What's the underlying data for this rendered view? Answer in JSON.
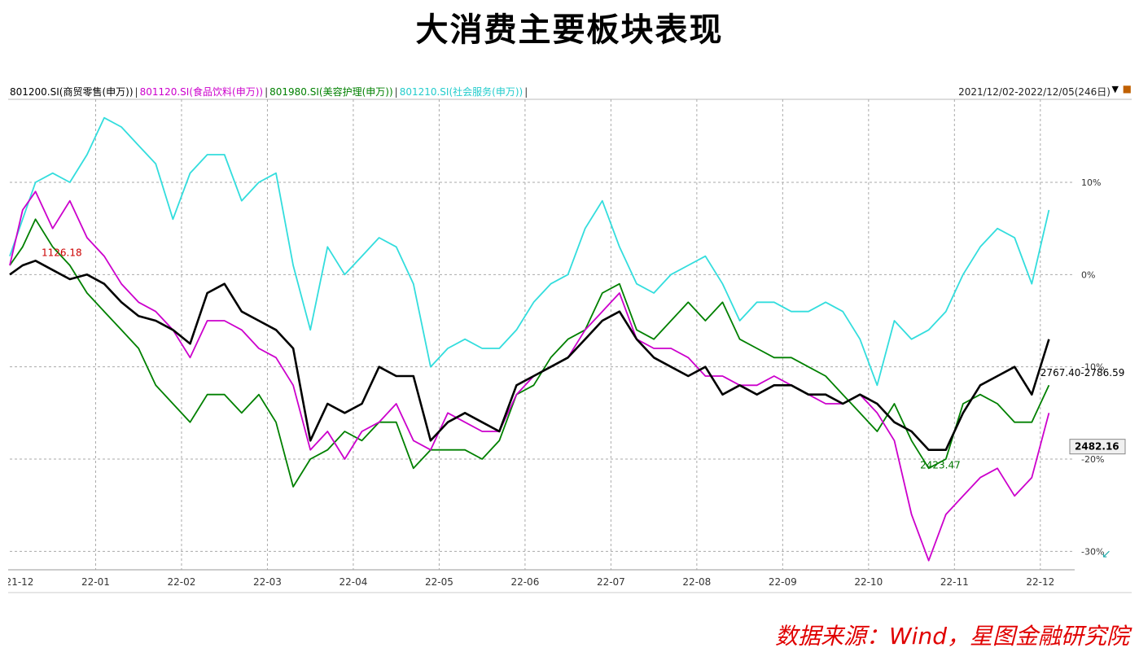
{
  "title": "大消费主要板块表现",
  "source": "数据来源：Wind，星图金融研究院",
  "date_range": "2021/12/02-2022/12/05(246日)",
  "icons": {
    "dropdown": "triangle-down-icon",
    "corner": "export-icon",
    "collapse": "arrow-icon"
  },
  "chart_data": {
    "type": "line",
    "x": [
      "21-12",
      "22-01",
      "22-02",
      "22-03",
      "22-04",
      "22-05",
      "22-06",
      "22-07",
      "22-08",
      "22-09",
      "22-10",
      "22-11",
      "22-12"
    ],
    "ylim": [
      -32,
      19
    ],
    "yticks": [
      10,
      0,
      -10,
      -20,
      -30
    ],
    "ytick_labels": [
      "10%",
      "0%",
      "-10%",
      "-20%",
      "-30%"
    ],
    "grid": true,
    "legend_position": "top-left",
    "annotations": [
      {
        "text": "1126.18",
        "x": 0.37,
        "y": 2,
        "color": "#cc0000"
      },
      {
        "text": "2767.40-2786.59",
        "x": 12.0,
        "y": -11,
        "color": "#000000"
      },
      {
        "text": "2482.16",
        "x": 12.4,
        "y": -19,
        "color": "#000000"
      },
      {
        "text": "2423.47",
        "x": 10.6,
        "y": -21,
        "color": "#007700"
      }
    ],
    "series": [
      {
        "name": "801200.SI(商贸零售(申万))",
        "color": "#000000",
        "x": [
          0,
          0.15,
          0.3,
          0.5,
          0.7,
          0.9,
          1.1,
          1.3,
          1.5,
          1.7,
          1.9,
          2.1,
          2.3,
          2.5,
          2.7,
          2.9,
          3.1,
          3.3,
          3.5,
          3.7,
          3.9,
          4.1,
          4.3,
          4.5,
          4.7,
          4.9,
          5.1,
          5.3,
          5.5,
          5.7,
          5.9,
          6.1,
          6.3,
          6.5,
          6.7,
          6.9,
          7.1,
          7.3,
          7.5,
          7.7,
          7.9,
          8.1,
          8.3,
          8.5,
          8.7,
          8.9,
          9.1,
          9.3,
          9.5,
          9.7,
          9.9,
          10.1,
          10.3,
          10.5,
          10.7,
          10.9,
          11.1,
          11.3,
          11.5,
          11.7,
          11.9,
          12.1
        ],
        "values": [
          0,
          1,
          1.5,
          0.5,
          -0.5,
          0,
          -1,
          -3,
          -4.5,
          -5,
          -6,
          -7.5,
          -2,
          -1,
          -4,
          -5,
          -6,
          -8,
          -18,
          -14,
          -15,
          -14,
          -10,
          -11,
          -11,
          -18,
          -16,
          -15,
          -16,
          -17,
          -12,
          -11,
          -10,
          -9,
          -7,
          -5,
          -4,
          -7,
          -9,
          -10,
          -11,
          -10,
          -13,
          -12,
          -13,
          -12,
          -12,
          -13,
          -13,
          -14,
          -13,
          -14,
          -16,
          -17,
          -19,
          -19,
          -15,
          -12,
          -11,
          -10,
          -13,
          -7
        ]
      },
      {
        "name": "801120.SI(食品饮料(申万))",
        "color": "#cc00cc",
        "x": [
          0,
          0.15,
          0.3,
          0.5,
          0.7,
          0.9,
          1.1,
          1.3,
          1.5,
          1.7,
          1.9,
          2.1,
          2.3,
          2.5,
          2.7,
          2.9,
          3.1,
          3.3,
          3.5,
          3.7,
          3.9,
          4.1,
          4.3,
          4.5,
          4.7,
          4.9,
          5.1,
          5.3,
          5.5,
          5.7,
          5.9,
          6.1,
          6.3,
          6.5,
          6.7,
          6.9,
          7.1,
          7.3,
          7.5,
          7.7,
          7.9,
          8.1,
          8.3,
          8.5,
          8.7,
          8.9,
          9.1,
          9.3,
          9.5,
          9.7,
          9.9,
          10.1,
          10.3,
          10.5,
          10.7,
          10.9,
          11.1,
          11.3,
          11.5,
          11.7,
          11.9,
          12.1
        ],
        "values": [
          1,
          7,
          9,
          5,
          8,
          4,
          2,
          -1,
          -3,
          -4,
          -6,
          -9,
          -5,
          -5,
          -6,
          -8,
          -9,
          -12,
          -19,
          -17,
          -20,
          -17,
          -16,
          -14,
          -18,
          -19,
          -15,
          -16,
          -17,
          -17,
          -13,
          -11,
          -10,
          -9,
          -6,
          -4,
          -2,
          -7,
          -8,
          -8,
          -9,
          -11,
          -11,
          -12,
          -12,
          -11,
          -12,
          -13,
          -14,
          -14,
          -13,
          -15,
          -18,
          -26,
          -31,
          -26,
          -24,
          -22,
          -21,
          -24,
          -22,
          -15
        ]
      },
      {
        "name": "801980.SI(美容护理(申万))",
        "color": "#008000",
        "x": [
          0,
          0.15,
          0.3,
          0.5,
          0.7,
          0.9,
          1.1,
          1.3,
          1.5,
          1.7,
          1.9,
          2.1,
          2.3,
          2.5,
          2.7,
          2.9,
          3.1,
          3.3,
          3.5,
          3.7,
          3.9,
          4.1,
          4.3,
          4.5,
          4.7,
          4.9,
          5.1,
          5.3,
          5.5,
          5.7,
          5.9,
          6.1,
          6.3,
          6.5,
          6.7,
          6.9,
          7.1,
          7.3,
          7.5,
          7.7,
          7.9,
          8.1,
          8.3,
          8.5,
          8.7,
          8.9,
          9.1,
          9.3,
          9.5,
          9.7,
          9.9,
          10.1,
          10.3,
          10.5,
          10.7,
          10.9,
          11.1,
          11.3,
          11.5,
          11.7,
          11.9,
          12.1
        ],
        "values": [
          1,
          3,
          6,
          3,
          1,
          -2,
          -4,
          -6,
          -8,
          -12,
          -14,
          -16,
          -13,
          -13,
          -15,
          -13,
          -16,
          -23,
          -20,
          -19,
          -17,
          -18,
          -16,
          -16,
          -21,
          -19,
          -19,
          -19,
          -20,
          -18,
          -13,
          -12,
          -9,
          -7,
          -6,
          -2,
          -1,
          -6,
          -7,
          -5,
          -3,
          -5,
          -3,
          -7,
          -8,
          -9,
          -9,
          -10,
          -11,
          -13,
          -15,
          -17,
          -14,
          -18,
          -21,
          -20,
          -14,
          -13,
          -14,
          -16,
          -16,
          -12
        ]
      },
      {
        "name": "801210.SI(社会服务(申万))",
        "color": "#33dddd",
        "x": [
          0,
          0.15,
          0.3,
          0.5,
          0.7,
          0.9,
          1.1,
          1.3,
          1.5,
          1.7,
          1.9,
          2.1,
          2.3,
          2.5,
          2.7,
          2.9,
          3.1,
          3.3,
          3.5,
          3.7,
          3.9,
          4.1,
          4.3,
          4.5,
          4.7,
          4.9,
          5.1,
          5.3,
          5.5,
          5.7,
          5.9,
          6.1,
          6.3,
          6.5,
          6.7,
          6.9,
          7.1,
          7.3,
          7.5,
          7.7,
          7.9,
          8.1,
          8.3,
          8.5,
          8.7,
          8.9,
          9.1,
          9.3,
          9.5,
          9.7,
          9.9,
          10.1,
          10.3,
          10.5,
          10.7,
          10.9,
          11.1,
          11.3,
          11.5,
          11.7,
          11.9,
          12.1
        ],
        "values": [
          2,
          6,
          10,
          11,
          10,
          13,
          17,
          16,
          14,
          12,
          6,
          11,
          13,
          13,
          8,
          10,
          11,
          1,
          -6,
          3,
          0,
          2,
          4,
          3,
          -1,
          -10,
          -8,
          -7,
          -8,
          -8,
          -6,
          -3,
          -1,
          0,
          5,
          8,
          3,
          -1,
          -2,
          0,
          1,
          2,
          -1,
          -5,
          -3,
          -3,
          -4,
          -4,
          -3,
          -4,
          -7,
          -12,
          -5,
          -7,
          -6,
          -4,
          0,
          3,
          5,
          4,
          -1,
          7
        ]
      }
    ]
  }
}
